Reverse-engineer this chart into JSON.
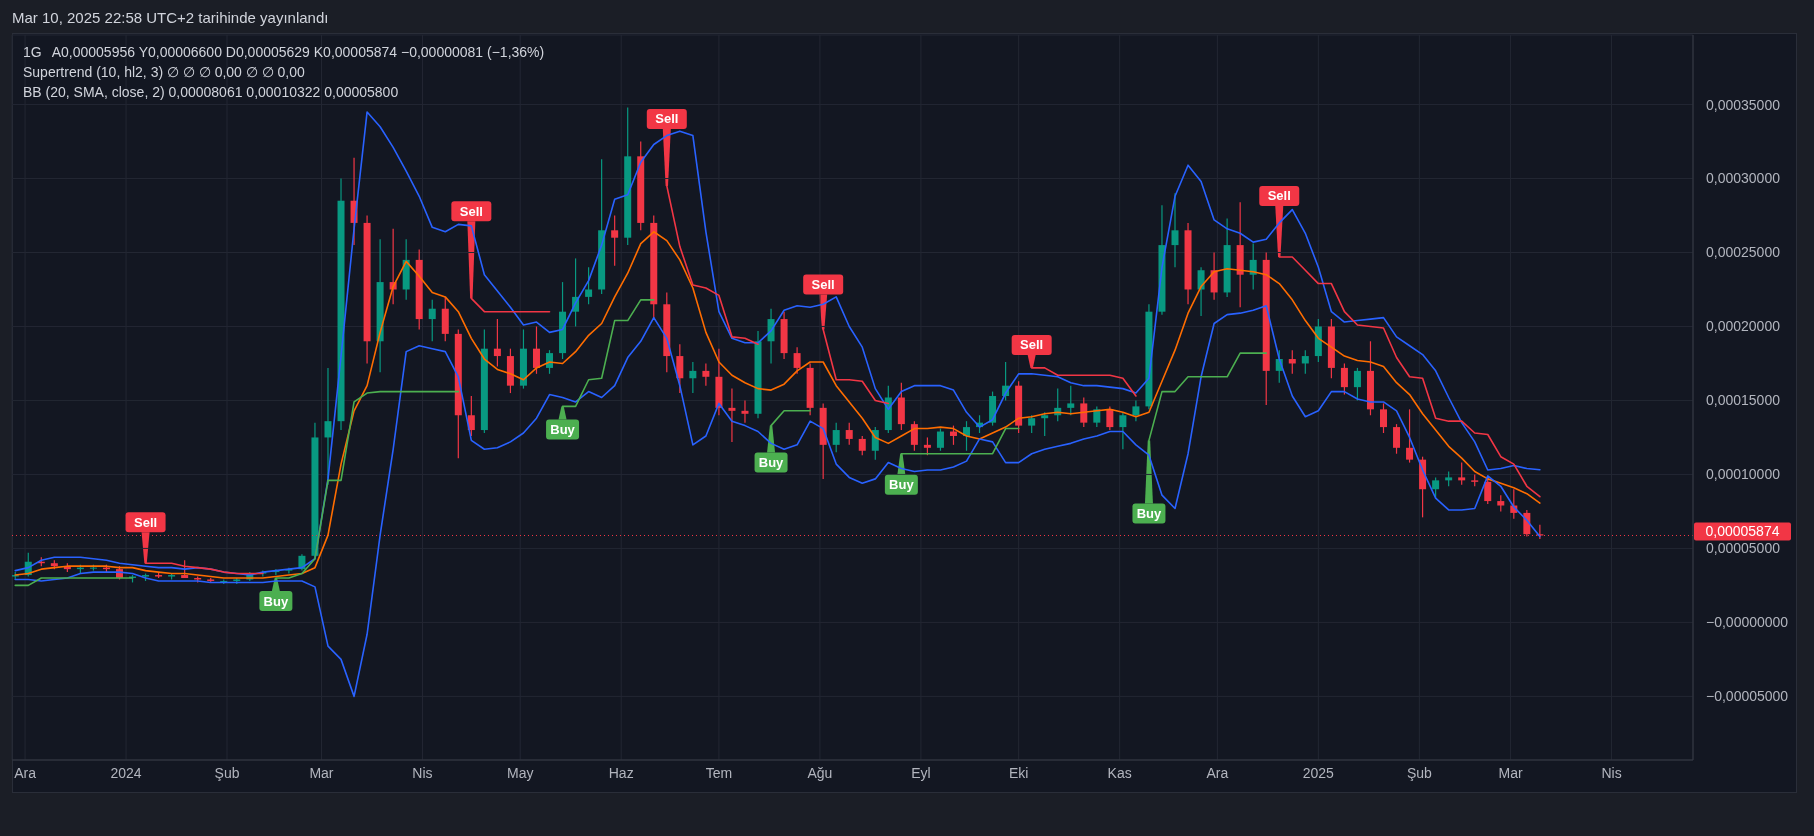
{
  "chart_data": {
    "type": "candlestick",
    "title": "Mar 10, 2025 22:58 UTC+2 tarihinde yayınlandı",
    "subtitle": "1G",
    "annotations": [
      "A0,00005956 Y0,00006600 D0,00005629 K0,00005874 −0,00000081 (−1,36%)",
      "Supertrend (10, hl2, 3) ∅ ∅ ∅ 0,00 ∅ ∅ 0,00",
      "BB (20, SMA, close, 2) 0,00008061 0,00010322 0,00005800",
      {
        "text": "Sell",
        "x": "2024-01-07",
        "y": 4e-05
      },
      {
        "text": "Buy",
        "x": "2024-02-16",
        "y": 3e-05
      },
      {
        "text": "Sell",
        "x": "2024-04-16",
        "y": 0.000219
      },
      {
        "text": "Buy",
        "x": "2024-05-14",
        "y": 0.000146
      },
      {
        "text": "Sell",
        "x": "2024-06-15",
        "y": 0.000295
      },
      {
        "text": "Buy",
        "x": "2024-07-17",
        "y": 0.000133
      },
      {
        "text": "Sell",
        "x": "2024-08-02",
        "y": 0.000198
      },
      {
        "text": "Buy",
        "x": "2024-08-26",
        "y": 0.000114
      },
      {
        "text": "Sell",
        "x": "2024-10-05",
        "y": 0.000172
      },
      {
        "text": "Buy",
        "x": "2024-11-10",
        "y": 0.000123
      },
      {
        "text": "Sell",
        "x": "2024-12-20",
        "y": 0.000247
      }
    ],
    "x": [
      "2023-11-28",
      "2023-12-02",
      "2023-12-06",
      "2023-12-10",
      "2023-12-14",
      "2023-12-18",
      "2023-12-22",
      "2023-12-26",
      "2023-12-30",
      "2024-01-03",
      "2024-01-07",
      "2024-01-11",
      "2024-01-15",
      "2024-01-19",
      "2024-01-23",
      "2024-01-27",
      "2024-01-31",
      "2024-02-04",
      "2024-02-08",
      "2024-02-12",
      "2024-02-16",
      "2024-02-20",
      "2024-02-24",
      "2024-02-28",
      "2024-03-03",
      "2024-03-07",
      "2024-03-11",
      "2024-03-15",
      "2024-03-19",
      "2024-03-23",
      "2024-03-27",
      "2024-03-31",
      "2024-04-04",
      "2024-04-08",
      "2024-04-12",
      "2024-04-16",
      "2024-04-20",
      "2024-04-24",
      "2024-04-28",
      "2024-05-02",
      "2024-05-06",
      "2024-05-10",
      "2024-05-14",
      "2024-05-18",
      "2024-05-22",
      "2024-05-26",
      "2024-05-30",
      "2024-06-03",
      "2024-06-07",
      "2024-06-11",
      "2024-06-15",
      "2024-06-19",
      "2024-06-23",
      "2024-06-27",
      "2024-07-01",
      "2024-07-05",
      "2024-07-09",
      "2024-07-13",
      "2024-07-17",
      "2024-07-21",
      "2024-07-25",
      "2024-07-29",
      "2024-08-02",
      "2024-08-06",
      "2024-08-10",
      "2024-08-14",
      "2024-08-18",
      "2024-08-22",
      "2024-08-26",
      "2024-08-30",
      "2024-09-03",
      "2024-09-07",
      "2024-09-11",
      "2024-09-15",
      "2024-09-19",
      "2024-09-23",
      "2024-09-27",
      "2024-10-01",
      "2024-10-05",
      "2024-10-09",
      "2024-10-13",
      "2024-10-17",
      "2024-10-21",
      "2024-10-25",
      "2024-10-29",
      "2024-11-02",
      "2024-11-06",
      "2024-11-10",
      "2024-11-14",
      "2024-11-18",
      "2024-11-22",
      "2024-11-26",
      "2024-11-30",
      "2024-12-04",
      "2024-12-08",
      "2024-12-12",
      "2024-12-16",
      "2024-12-20",
      "2024-12-24",
      "2024-12-28",
      "2025-01-01",
      "2025-01-05",
      "2025-01-09",
      "2025-01-13",
      "2025-01-17",
      "2025-01-21",
      "2025-01-25",
      "2025-01-29",
      "2025-02-02",
      "2025-02-06",
      "2025-02-10",
      "2025-02-14",
      "2025-02-18",
      "2025-02-22",
      "2025-02-26",
      "2025-03-02",
      "2025-03-06",
      "2025-03-10"
    ],
    "ohlc": [
      [
        3.1e-05,
        3.4e-05,
        2.9e-05,
        3.2e-05
      ],
      [
        3.2e-05,
        4.7e-05,
        3.1e-05,
        4.1e-05
      ],
      [
        4.1e-05,
        4.4e-05,
        3.8e-05,
        4e-05
      ],
      [
        4e-05,
        4.2e-05,
        3.6e-05,
        3.8e-05
      ],
      [
        3.8e-05,
        4e-05,
        3.4e-05,
        3.6e-05
      ],
      [
        3.6e-05,
        3.9e-05,
        3.3e-05,
        3.7e-05
      ],
      [
        3.7e-05,
        3.9e-05,
        3.5e-05,
        3.7e-05
      ],
      [
        3.7e-05,
        3.9e-05,
        3.4e-05,
        3.6e-05
      ],
      [
        3.6e-05,
        3.8e-05,
        2.9e-05,
        3e-05
      ],
      [
        3e-05,
        3.2e-05,
        2.7e-05,
        3.1e-05
      ],
      [
        3.1e-05,
        3.3e-05,
        2.8e-05,
        3.2e-05
      ],
      [
        3.2e-05,
        3.4e-05,
        3e-05,
        3.1e-05
      ],
      [
        3.1e-05,
        3.3e-05,
        2.9e-05,
        3.2e-05
      ],
      [
        3.2e-05,
        4.2e-05,
        3e-05,
        3e-05
      ],
      [
        3e-05,
        3.1e-05,
        2.7e-05,
        2.9e-05
      ],
      [
        2.9e-05,
        3e-05,
        2.7e-05,
        2.8e-05
      ],
      [
        2.8e-05,
        2.9e-05,
        2.6e-05,
        2.8e-05
      ],
      [
        2.8e-05,
        3e-05,
        2.6e-05,
        2.9e-05
      ],
      [
        2.9e-05,
        3.4e-05,
        2.8e-05,
        3.3e-05
      ],
      [
        3.3e-05,
        3.5e-05,
        3.1e-05,
        3.4e-05
      ],
      [
        3.4e-05,
        3.6e-05,
        3.2e-05,
        3.5e-05
      ],
      [
        3.5e-05,
        3.7e-05,
        3.3e-05,
        3.6e-05
      ],
      [
        3.6e-05,
        4.6e-05,
        3.5e-05,
        4.5e-05
      ],
      [
        4.5e-05,
        0.000135,
        4.4e-05,
        0.000125
      ],
      [
        0.000125,
        0.000172,
        9.3e-05,
        0.000136
      ],
      [
        0.000136,
        0.0003,
        0.00013,
        0.000285
      ],
      [
        0.000285,
        0.000314,
        0.000255,
        0.00027
      ],
      [
        0.00027,
        0.000275,
        0.000175,
        0.00019
      ],
      [
        0.00019,
        0.000259,
        0.000169,
        0.00023
      ],
      [
        0.00023,
        0.000266,
        0.000215,
        0.000225
      ],
      [
        0.000225,
        0.000259,
        0.000218,
        0.000245
      ],
      [
        0.000245,
        0.000252,
        0.000198,
        0.000205
      ],
      [
        0.000205,
        0.000218,
        0.00019,
        0.000212
      ],
      [
        0.000212,
        0.00022,
        0.00019,
        0.000195
      ],
      [
        0.000195,
        0.000198,
        0.000111,
        0.00014
      ],
      [
        0.00014,
        0.000153,
        0.000126,
        0.00013
      ],
      [
        0.00013,
        0.000198,
        0.000128,
        0.000185
      ],
      [
        0.000185,
        0.000205,
        0.000173,
        0.00018
      ],
      [
        0.00018,
        0.000185,
        0.000155,
        0.00016
      ],
      [
        0.00016,
        0.000198,
        0.000158,
        0.000185
      ],
      [
        0.000185,
        0.0002,
        0.000168,
        0.000172
      ],
      [
        0.000172,
        0.000184,
        0.000168,
        0.000182
      ],
      [
        0.000182,
        0.00023,
        0.000178,
        0.00021
      ],
      [
        0.00021,
        0.000246,
        0.0002,
        0.00022
      ],
      [
        0.00022,
        0.00024,
        0.000215,
        0.000225
      ],
      [
        0.000225,
        0.000313,
        0.000222,
        0.000265
      ],
      [
        0.000265,
        0.000275,
        0.000241,
        0.00026
      ],
      [
        0.00026,
        0.000348,
        0.000255,
        0.000315
      ],
      [
        0.000315,
        0.000325,
        0.000265,
        0.00027
      ],
      [
        0.00027,
        0.000275,
        0.000205,
        0.000215
      ],
      [
        0.000215,
        0.000223,
        0.000169,
        0.00018
      ],
      [
        0.00018,
        0.000188,
        0.000155,
        0.000165
      ],
      [
        0.000165,
        0.000176,
        0.000155,
        0.00017
      ],
      [
        0.00017,
        0.000175,
        0.00016,
        0.000166
      ],
      [
        0.000166,
        0.000185,
        0.00014,
        0.000145
      ],
      [
        0.000145,
        0.000158,
        0.000122,
        0.000143
      ],
      [
        0.000143,
        0.00015,
        0.000135,
        0.000141
      ],
      [
        0.000141,
        0.000197,
        0.000138,
        0.00019
      ],
      [
        0.00019,
        0.000212,
        0.000175,
        0.000205
      ],
      [
        0.000205,
        0.00021,
        0.000178,
        0.000182
      ],
      [
        0.000182,
        0.000186,
        0.000168,
        0.000172
      ],
      [
        0.000172,
        0.000175,
        0.00014,
        0.000145
      ],
      [
        0.000145,
        0.000148,
        9.7e-05,
        0.00012
      ],
      [
        0.00012,
        0.000135,
        0.000115,
        0.00013
      ],
      [
        0.00013,
        0.000135,
        0.00012,
        0.000124
      ],
      [
        0.000124,
        0.000126,
        0.000113,
        0.000116
      ],
      [
        0.000116,
        0.000132,
        0.00011,
        0.00013
      ],
      [
        0.00013,
        0.00016,
        0.000128,
        0.000152
      ],
      [
        0.000152,
        0.000162,
        0.00013,
        0.000134
      ],
      [
        0.000134,
        0.000136,
        0.000116,
        0.00012
      ],
      [
        0.00012,
        0.000125,
        0.000113,
        0.000118
      ],
      [
        0.000118,
        0.000131,
        0.000116,
        0.000129
      ],
      [
        0.000129,
        0.000133,
        0.00012,
        0.000126
      ],
      [
        0.000126,
        0.000136,
        0.000116,
        0.000132
      ],
      [
        0.000132,
        0.00014,
        0.000128,
        0.000135
      ],
      [
        0.000135,
        0.000156,
        0.000133,
        0.000153
      ],
      [
        0.000153,
        0.000176,
        0.00015,
        0.00016
      ],
      [
        0.00016,
        0.000163,
        0.000128,
        0.000133
      ],
      [
        0.000133,
        0.00014,
        0.000128,
        0.000138
      ],
      [
        0.000138,
        0.000142,
        0.000126,
        0.00014
      ],
      [
        0.00014,
        0.000158,
        0.000136,
        0.000145
      ],
      [
        0.000145,
        0.00016,
        0.00014,
        0.000148
      ],
      [
        0.000148,
        0.000152,
        0.000132,
        0.000135
      ],
      [
        0.000135,
        0.000146,
        0.000132,
        0.000144
      ],
      [
        0.000144,
        0.000146,
        0.00013,
        0.000132
      ],
      [
        0.000132,
        0.000142,
        0.000117,
        0.00014
      ],
      [
        0.00014,
        0.00015,
        0.000136,
        0.000146
      ],
      [
        0.000146,
        0.000215,
        0.000144,
        0.00021
      ],
      [
        0.00021,
        0.000282,
        0.000208,
        0.000255
      ],
      [
        0.000255,
        0.00029,
        0.00024,
        0.000265
      ],
      [
        0.000265,
        0.00027,
        0.000215,
        0.000225
      ],
      [
        0.000225,
        0.00024,
        0.000207,
        0.000238
      ],
      [
        0.000238,
        0.00025,
        0.000218,
        0.000223
      ],
      [
        0.000223,
        0.000273,
        0.00022,
        0.000255
      ],
      [
        0.000255,
        0.000284,
        0.000213,
        0.000235
      ],
      [
        0.000235,
        0.000256,
        0.000225,
        0.000245
      ],
      [
        0.000245,
        0.00025,
        0.000147,
        0.00017
      ],
      [
        0.00017,
        0.000184,
        0.000162,
        0.000178
      ],
      [
        0.000178,
        0.000184,
        0.000168,
        0.000175
      ],
      [
        0.000175,
        0.000184,
        0.000168,
        0.00018
      ],
      [
        0.00018,
        0.000205,
        0.000176,
        0.0002
      ],
      [
        0.0002,
        0.000205,
        0.000165,
        0.000172
      ],
      [
        0.000172,
        0.000175,
        0.000154,
        0.000159
      ],
      [
        0.000159,
        0.000172,
        0.00015,
        0.00017
      ],
      [
        0.00017,
        0.00019,
        0.00014,
        0.000144
      ],
      [
        0.000144,
        0.000148,
        0.000128,
        0.000132
      ],
      [
        0.000132,
        0.000134,
        0.000114,
        0.000118
      ],
      [
        0.000118,
        0.000144,
        0.000108,
        0.00011
      ],
      [
        0.00011,
        0.000112,
        7.1e-05,
        9e-05
      ],
      [
        9e-05,
        9.8e-05,
        8.4e-05,
        9.6e-05
      ],
      [
        9.6e-05,
        0.000102,
        9.2e-05,
        9.8e-05
      ],
      [
        9.8e-05,
        0.000108,
        9.3e-05,
        9.6e-05
      ],
      [
        9.6e-05,
        0.0001,
        9.2e-05,
        9.5e-05
      ],
      [
        9.5e-05,
        9.8e-05,
        8e-05,
        8.2e-05
      ],
      [
        8.2e-05,
        8.6e-05,
        7.5e-05,
        7.9e-05
      ],
      [
        7.9e-05,
        9e-05,
        7e-05,
        7.4e-05
      ],
      [
        7.4e-05,
        7.6e-05,
        5.8e-05,
        5.96e-05
      ],
      [
        5.956e-05,
        6.6e-05,
        5.629e-05,
        5.874e-05
      ]
    ],
    "colors": [
      "#089981",
      "#089981",
      "#f23645",
      "#f23645",
      "#f23645",
      "#089981",
      "#089981",
      "#f23645",
      "#f23645",
      "#089981",
      "#089981",
      "#f23645",
      "#089981",
      "#f23645",
      "#f23645",
      "#f23645",
      "#089981",
      "#089981",
      "#089981",
      "#089981",
      "#089981",
      "#089981",
      "#089981",
      "#089981",
      "#089981",
      "#089981",
      "#f23645",
      "#f23645",
      "#089981",
      "#f23645",
      "#089981",
      "#f23645",
      "#089981",
      "#f23645",
      "#f23645",
      "#f23645",
      "#089981",
      "#f23645",
      "#f23645",
      "#089981",
      "#f23645",
      "#089981",
      "#089981",
      "#089981",
      "#089981",
      "#089981",
      "#f23645",
      "#089981",
      "#f23645",
      "#f23645",
      "#f23645",
      "#f23645",
      "#089981",
      "#f23645",
      "#f23645",
      "#f23645",
      "#f23645",
      "#089981",
      "#089981",
      "#f23645",
      "#f23645",
      "#f23645",
      "#f23645",
      "#089981",
      "#f23645",
      "#f23645",
      "#089981",
      "#089981",
      "#f23645",
      "#f23645",
      "#f23645",
      "#089981",
      "#f23645",
      "#089981",
      "#089981",
      "#089981",
      "#089981",
      "#f23645",
      "#089981",
      "#089981",
      "#089981",
      "#089981",
      "#f23645",
      "#089981",
      "#f23645",
      "#089981",
      "#089981",
      "#089981",
      "#089981",
      "#089981",
      "#f23645",
      "#089981",
      "#f23645",
      "#089981",
      "#f23645",
      "#089981",
      "#f23645",
      "#089981",
      "#f23645",
      "#089981",
      "#089981",
      "#f23645",
      "#f23645",
      "#089981",
      "#f23645",
      "#f23645",
      "#f23645",
      "#f23645",
      "#f23645",
      "#089981",
      "#089981",
      "#f23645",
      "#f23645",
      "#f23645",
      "#f23645",
      "#f23645",
      "#f23645",
      "#f23645"
    ],
    "series": [
      {
        "type": "line",
        "color": "#2962ff",
        "values": [
          3.5e-05,
          3.7e-05,
          4.2e-05,
          4.4e-05,
          4.4e-05,
          4.4e-05,
          4.3e-05,
          4.2e-05,
          4e-05,
          3.9e-05,
          3.8e-05,
          3.7e-05,
          3.7e-05,
          3.6e-05,
          3.7e-05,
          3.6e-05,
          3.4e-05,
          3.3e-05,
          3.2e-05,
          3.4e-05,
          3.5e-05,
          3.6e-05,
          3.7e-05,
          4.3e-05,
          9.7e-05,
          0.00018,
          0.000266,
          0.000345,
          0.000335,
          0.000321,
          0.000305,
          0.000288,
          0.000267,
          0.000264,
          0.000269,
          0.000268,
          0.000235,
          0.000224,
          0.000213,
          0.000201,
          0.000203,
          0.000196,
          0.000198,
          0.000216,
          0.000231,
          0.000255,
          0.000286,
          0.000289,
          0.000311,
          0.000323,
          0.000329,
          0.000332,
          0.000329,
          0.000264,
          0.00021,
          0.000192,
          0.000189,
          0.000189,
          0.000197,
          0.000211,
          0.000214,
          0.000213,
          0.000215,
          0.00022,
          0.0002,
          0.000186,
          0.000158,
          0.000144,
          0.000156,
          0.00016,
          0.00016,
          0.00016,
          0.000157,
          0.000142,
          0.000132,
          0.000137,
          0.000155,
          0.000168,
          0.000168,
          0.000167,
          0.000166,
          0.000162,
          0.00016,
          0.00016,
          0.000159,
          0.000158,
          0.000155,
          0.000165,
          0.00024,
          0.000288,
          0.000309,
          0.000298,
          0.000272,
          0.000266,
          0.000263,
          0.000257,
          0.000259,
          0.00027,
          0.000279,
          0.000263,
          0.00024,
          0.00021,
          0.000203,
          0.000204,
          0.000205,
          0.000206,
          0.000193,
          0.000187,
          0.000181,
          0.00017,
          0.000152,
          0.000135,
          0.000122,
          0.000103,
          0.000104,
          0.000106,
          0.000104,
          0.00010322
        ]
      },
      {
        "type": "line",
        "color": "#ff6d00",
        "values": [
          3.2e-05,
          3.3e-05,
          3.6e-05,
          3.7e-05,
          3.8e-05,
          3.8e-05,
          3.8e-05,
          3.8e-05,
          3.7e-05,
          3.7e-05,
          3.5e-05,
          3.4e-05,
          3.3e-05,
          3.3e-05,
          3.2e-05,
          3.1e-05,
          3e-05,
          3e-05,
          3e-05,
          3e-05,
          3.1e-05,
          3.2e-05,
          3.3e-05,
          3.7e-05,
          5.9e-05,
          0.000107,
          0.000143,
          0.00016,
          0.000196,
          0.000227,
          0.000244,
          0.000234,
          0.000223,
          0.00022,
          0.00021,
          0.000192,
          0.000178,
          0.000171,
          0.000168,
          0.000164,
          0.000172,
          0.000176,
          0.000175,
          0.000183,
          0.000194,
          0.000202,
          0.00022,
          0.000236,
          0.000256,
          0.000264,
          0.000258,
          0.000245,
          0.000226,
          0.000196,
          0.000176,
          0.000167,
          0.000162,
          0.000158,
          0.000157,
          0.000161,
          0.00017,
          0.000176,
          0.000176,
          0.00016,
          0.000149,
          0.000138,
          0.000125,
          0.000121,
          0.000126,
          0.000131,
          0.000131,
          0.000132,
          0.000131,
          0.000126,
          0.000124,
          0.000128,
          0.000132,
          0.000138,
          0.000139,
          0.000141,
          0.000142,
          0.000141,
          0.000142,
          0.000143,
          0.000144,
          0.000142,
          0.000139,
          0.000142,
          0.000163,
          0.000184,
          0.000209,
          0.000227,
          0.000237,
          0.000239,
          0.000238,
          0.000237,
          0.000235,
          0.000229,
          0.000218,
          0.000204,
          0.000192,
          0.000186,
          0.00018,
          0.000177,
          0.000176,
          0.000173,
          0.000162,
          0.000154,
          0.000141,
          0.00013,
          0.000119,
          0.000111,
          0.000102,
          9.7e-05,
          9.4e-05,
          9.1e-05,
          8.7e-05,
          8.061e-05
        ]
      },
      {
        "type": "line",
        "color": "#2962ff",
        "values": [
          2.9e-05,
          2.9e-05,
          2.8e-05,
          2.9e-05,
          3e-05,
          3.3e-05,
          3.4e-05,
          3.4e-05,
          3.4e-05,
          3.3e-05,
          3e-05,
          2.8e-05,
          2.8e-05,
          2.8e-05,
          2.8e-05,
          2.7e-05,
          2.7e-05,
          2.7e-05,
          2.7e-05,
          2.7e-05,
          2.8e-05,
          2.8e-05,
          2.8e-05,
          2.4e-05,
          -1.6e-05,
          -2.5e-05,
          -5e-05,
          -8e-06,
          5.9e-05,
          0.000117,
          0.000183,
          0.000187,
          0.000185,
          0.000183,
          0.000166,
          0.000123,
          0.000117,
          0.000118,
          0.000122,
          0.000128,
          0.000138,
          0.000154,
          0.000152,
          0.000149,
          0.000156,
          0.000152,
          0.00016,
          0.000179,
          0.00019,
          0.000206,
          0.000192,
          0.00016,
          0.00012,
          0.000126,
          0.000148,
          0.000136,
          0.000133,
          0.000129,
          0.000121,
          0.000117,
          0.00012,
          0.000136,
          0.000131,
          0.000107,
          9.8e-05,
          9.4e-05,
          9.7e-05,
          0.000108,
          0.000104,
          0.000102,
          0.000103,
          0.000103,
          0.000105,
          0.000109,
          0.000124,
          0.000122,
          0.000108,
          0.000108,
          0.000114,
          0.000117,
          0.000119,
          0.000121,
          0.000124,
          0.000126,
          0.000129,
          0.000129,
          0.00012,
          0.000113,
          8.6e-05,
          7.7e-05,
          0.000114,
          0.000166,
          0.000202,
          0.000208,
          0.000209,
          0.000211,
          0.000214,
          0.000178,
          0.000153,
          0.000139,
          0.000143,
          0.000156,
          0.000156,
          0.000151,
          0.000149,
          0.000149,
          0.000143,
          0.000125,
          0.000103,
          8.4e-05,
          7.6e-05,
          7.6e-05,
          7.7e-05,
          9.9e-05,
          9.2e-05,
          7.8e-05,
          6.9e-05,
          5.8e-05
        ]
      },
      {
        "type": "line",
        "color": "#4caf50",
        "values": [
          2.5e-05,
          2.5e-05,
          3e-05,
          3e-05,
          3e-05,
          3e-05,
          3e-05,
          3e-05,
          3e-05,
          3e-05,
          null,
          null,
          null,
          null,
          null,
          null,
          null,
          null,
          null,
          null,
          3e-05,
          3e-05,
          3.3e-05,
          4.3e-05,
          9.6e-05,
          9.6e-05,
          0.000149,
          0.000155,
          0.000156,
          0.000156,
          0.000156,
          0.000156,
          0.000156,
          0.000156,
          0.000156,
          null,
          null,
          null,
          null,
          null,
          null,
          null,
          0.000146,
          0.000146,
          0.000164,
          0.000165,
          0.000204,
          0.000204,
          0.000218,
          0.000218,
          null,
          null,
          null,
          null,
          null,
          null,
          null,
          null,
          0.000133,
          0.000143,
          0.000143,
          0.000143,
          null,
          null,
          null,
          null,
          null,
          null,
          0.000114,
          0.000114,
          0.000114,
          0.000114,
          0.000114,
          0.000114,
          0.000114,
          0.000114,
          0.000131,
          0.000131,
          null,
          null,
          null,
          null,
          null,
          null,
          null,
          null,
          null,
          0.000123,
          0.000156,
          0.000156,
          0.000166,
          0.000166,
          0.000166,
          0.000166,
          0.000182,
          0.000182,
          0.000182,
          null,
          null,
          null,
          null,
          null,
          null,
          null,
          null,
          null,
          null,
          null,
          null,
          null,
          null,
          null,
          null,
          null,
          null,
          null,
          null,
          null
        ]
      },
      {
        "type": "line",
        "color": "#f23645",
        "values": [
          null,
          null,
          null,
          null,
          null,
          null,
          null,
          null,
          null,
          null,
          4e-05,
          4e-05,
          4e-05,
          3.8e-05,
          3.7e-05,
          3.6e-05,
          3.4e-05,
          3.3e-05,
          3.3e-05,
          3.3e-05,
          null,
          null,
          null,
          null,
          null,
          null,
          null,
          null,
          null,
          null,
          null,
          null,
          null,
          null,
          null,
          0.000219,
          0.00021,
          0.00021,
          0.00021,
          0.00021,
          0.00021,
          0.00021,
          null,
          null,
          null,
          null,
          null,
          null,
          null,
          null,
          0.000295,
          0.000254,
          0.000228,
          0.000226,
          0.000221,
          0.000193,
          0.000192,
          0.000188,
          null,
          null,
          null,
          null,
          0.000198,
          0.000164,
          0.000164,
          0.000163,
          0.00015,
          0.000148,
          null,
          null,
          null,
          null,
          null,
          null,
          null,
          null,
          null,
          null,
          0.000172,
          0.000172,
          0.000167,
          0.000167,
          0.000167,
          0.000167,
          0.000167,
          0.000165,
          0.000153,
          null,
          null,
          null,
          null,
          null,
          null,
          null,
          null,
          null,
          null,
          0.000247,
          0.000247,
          0.000238,
          0.000229,
          0.000229,
          0.00021,
          0.000201,
          0.0002,
          0.000199,
          0.000179,
          0.000166,
          0.000165,
          0.000138,
          0.000136,
          0.000136,
          0.000128,
          0.000127,
          0.000112,
          0.000107,
          9.2e-05,
          8.5e-05
        ]
      }
    ],
    "xlim": [
      "2023-11-27",
      "2025-04-26"
    ],
    "xticks": [
      {
        "value": "2023-12-01",
        "label": "Ara"
      },
      {
        "value": "2024-01-01",
        "label": "2024"
      },
      {
        "value": "2024-02-01",
        "label": "Şub"
      },
      {
        "value": "2024-03-01",
        "label": "Mar"
      },
      {
        "value": "2024-04-01",
        "label": "Nis"
      },
      {
        "value": "2024-05-01",
        "label": "May"
      },
      {
        "value": "2024-06-01",
        "label": "Haz"
      },
      {
        "value": "2024-07-01",
        "label": "Tem"
      },
      {
        "value": "2024-08-01",
        "label": "Ağu"
      },
      {
        "value": "2024-09-01",
        "label": "Eyl"
      },
      {
        "value": "2024-10-01",
        "label": "Eki"
      },
      {
        "value": "2024-11-01",
        "label": "Kas"
      },
      {
        "value": "2024-12-01",
        "label": "Ara"
      },
      {
        "value": "2025-01-01",
        "label": "2025"
      },
      {
        "value": "2025-02-01",
        "label": "Şub"
      },
      {
        "value": "2025-03-01",
        "label": "Mar"
      },
      {
        "value": "2025-04-01",
        "label": "Nis"
      }
    ],
    "ylim": [
      -9.3e-05,
      0.000397
    ],
    "yticks": [
      {
        "value": -5e-05,
        "label": "−0,00005000"
      },
      {
        "value": 0,
        "label": "−0,00000000"
      },
      {
        "value": 5e-05,
        "label": "0,00005000"
      },
      {
        "value": 0.0001,
        "label": "0,00010000"
      },
      {
        "value": 0.00015,
        "label": "0,00015000"
      },
      {
        "value": 0.0002,
        "label": "0,00020000"
      },
      {
        "value": 0.00025,
        "label": "0,00025000"
      },
      {
        "value": 0.0003,
        "label": "0,00030000"
      },
      {
        "value": 0.00035,
        "label": "0,00035000"
      }
    ],
    "ref_lines": [
      {
        "axis": "y",
        "value": 5.874e-05,
        "label": "0,00005874",
        "color": "#f23645",
        "line_style": "dotted"
      }
    ],
    "grid": true
  }
}
